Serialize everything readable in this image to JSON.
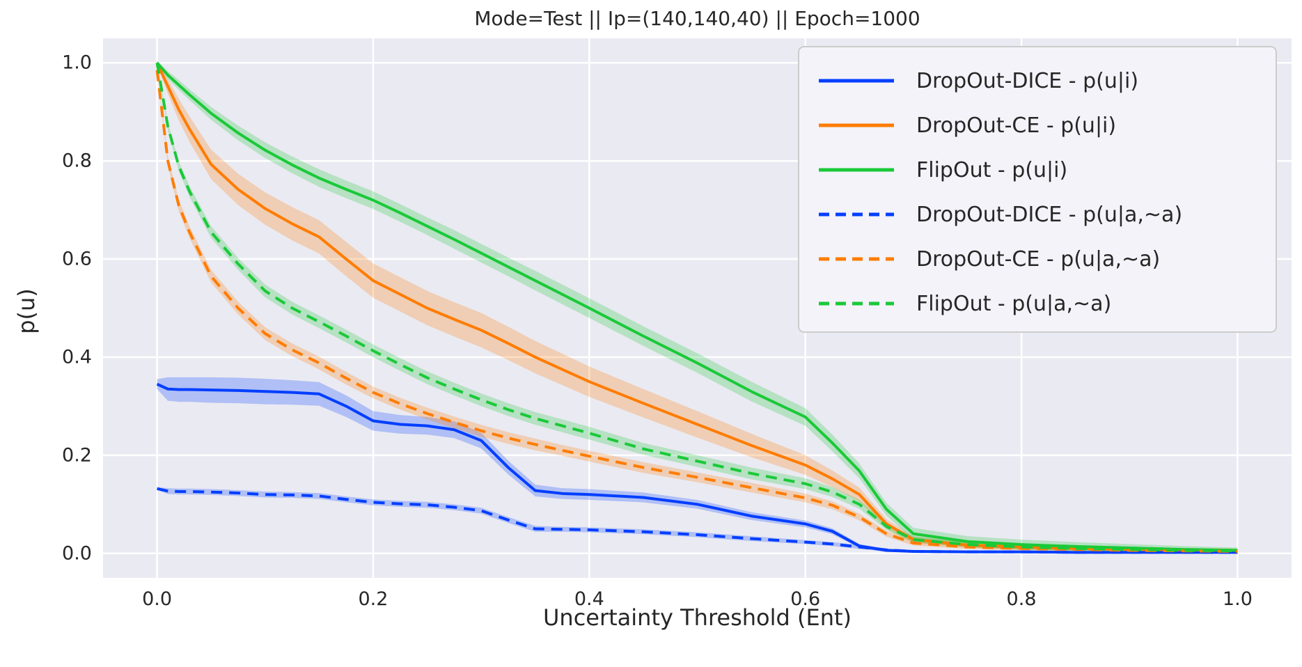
{
  "title": "Mode=Test || Ip=(140,140,40) || Epoch=1000",
  "colors": {
    "figure_background": "#ffffff",
    "axes_background": "#eaeaf2",
    "grid": "#ffffff",
    "text": "#262626",
    "legend_background": "#f3f3f9",
    "legend_border": "#cccccc",
    "blue": "#023EFF",
    "orange": "#FF7C00",
    "green": "#1AC938"
  },
  "chart_data": {
    "type": "line",
    "title": "Mode=Test || Ip=(140,140,40) || Epoch=1000",
    "xlabel": "Uncertainty Threshold (Ent)",
    "ylabel": "p(u)",
    "xlim": [
      -0.05,
      1.05
    ],
    "ylim": [
      -0.05,
      1.05
    ],
    "x_ticks": [
      "0.0",
      "0.2",
      "0.4",
      "0.6",
      "0.8",
      "1.0"
    ],
    "y_ticks": [
      "0.0",
      "0.2",
      "0.4",
      "0.6",
      "0.8",
      "1.0"
    ],
    "tick_values": [
      0.0,
      0.2,
      0.4,
      0.6,
      0.8,
      1.0
    ],
    "grid": true,
    "legend_position": "upper right",
    "x": [
      0,
      0.01,
      0.02,
      0.03,
      0.05,
      0.075,
      0.1,
      0.125,
      0.15,
      0.175,
      0.2,
      0.225,
      0.25,
      0.275,
      0.3,
      0.325,
      0.35,
      0.375,
      0.4,
      0.45,
      0.5,
      0.55,
      0.6,
      0.625,
      0.65,
      0.675,
      0.7,
      0.75,
      0.8,
      0.85,
      0.9,
      0.95,
      1.0
    ],
    "series": [
      {
        "label": "DropOut-DICE - p(u|i)",
        "color": "#023EFF",
        "dash": false,
        "values": [
          0.345,
          0.335,
          0.334,
          0.334,
          0.333,
          0.332,
          0.33,
          0.328,
          0.325,
          0.3,
          0.27,
          0.263,
          0.26,
          0.252,
          0.23,
          0.175,
          0.128,
          0.122,
          0.12,
          0.114,
          0.1,
          0.076,
          0.06,
          0.045,
          0.015,
          0.006,
          0.004,
          0.003,
          0.003,
          0.002,
          0.002,
          0.002,
          0.002
        ],
        "band": [
          0.01,
          0.024,
          0.025,
          0.025,
          0.026,
          0.026,
          0.026,
          0.025,
          0.024,
          0.022,
          0.02,
          0.019,
          0.018,
          0.017,
          0.016,
          0.014,
          0.012,
          0.011,
          0.011,
          0.01,
          0.009,
          0.008,
          0.007,
          0.006,
          0.004,
          0.003,
          0.002,
          0.002,
          0.002,
          0.002,
          0.002,
          0.002,
          0.002
        ]
      },
      {
        "label": "DropOut-CE - p(u|i)",
        "color": "#FF7C00",
        "dash": false,
        "values": [
          1.0,
          0.952,
          0.905,
          0.865,
          0.793,
          0.742,
          0.703,
          0.672,
          0.645,
          0.6,
          0.556,
          0.528,
          0.5,
          0.477,
          0.455,
          0.428,
          0.4,
          0.375,
          0.35,
          0.306,
          0.263,
          0.22,
          0.18,
          0.152,
          0.12,
          0.06,
          0.028,
          0.017,
          0.013,
          0.01,
          0.008,
          0.007,
          0.006
        ],
        "band": [
          0.005,
          0.015,
          0.022,
          0.026,
          0.03,
          0.032,
          0.033,
          0.034,
          0.034,
          0.035,
          0.035,
          0.035,
          0.035,
          0.035,
          0.035,
          0.034,
          0.033,
          0.032,
          0.031,
          0.029,
          0.027,
          0.024,
          0.02,
          0.017,
          0.014,
          0.01,
          0.007,
          0.005,
          0.005,
          0.004,
          0.004,
          0.004,
          0.004
        ]
      },
      {
        "label": "FlipOut - p(u|i)",
        "color": "#1AC938",
        "dash": false,
        "values": [
          1.0,
          0.975,
          0.955,
          0.935,
          0.897,
          0.857,
          0.822,
          0.792,
          0.765,
          0.742,
          0.72,
          0.694,
          0.667,
          0.64,
          0.612,
          0.584,
          0.556,
          0.528,
          0.5,
          0.443,
          0.388,
          0.33,
          0.278,
          0.225,
          0.168,
          0.09,
          0.04,
          0.024,
          0.018,
          0.014,
          0.011,
          0.008,
          0.006
        ],
        "band": [
          0.004,
          0.008,
          0.01,
          0.011,
          0.013,
          0.015,
          0.016,
          0.017,
          0.018,
          0.018,
          0.018,
          0.018,
          0.018,
          0.019,
          0.019,
          0.019,
          0.02,
          0.02,
          0.02,
          0.02,
          0.02,
          0.02,
          0.018,
          0.017,
          0.015,
          0.013,
          0.012,
          0.011,
          0.01,
          0.009,
          0.008,
          0.007,
          0.006
        ]
      },
      {
        "label": "DropOut-DICE - p(u|a,~a)",
        "color": "#023EFF",
        "dash": true,
        "values": [
          0.132,
          0.127,
          0.126,
          0.126,
          0.125,
          0.123,
          0.12,
          0.119,
          0.117,
          0.11,
          0.104,
          0.101,
          0.099,
          0.094,
          0.087,
          0.068,
          0.05,
          0.049,
          0.048,
          0.044,
          0.038,
          0.03,
          0.023,
          0.019,
          0.013,
          0.007,
          0.004,
          0.003,
          0.003,
          0.002,
          0.002,
          0.002,
          0.002
        ],
        "band": [
          0.003,
          0.006,
          0.006,
          0.006,
          0.006,
          0.006,
          0.006,
          0.006,
          0.006,
          0.006,
          0.006,
          0.006,
          0.006,
          0.006,
          0.006,
          0.006,
          0.006,
          0.005,
          0.005,
          0.005,
          0.005,
          0.005,
          0.004,
          0.004,
          0.004,
          0.003,
          0.003,
          0.002,
          0.002,
          0.002,
          0.002,
          0.002,
          0.002
        ]
      },
      {
        "label": "DropOut-CE - p(u|a,~a)",
        "color": "#FF7C00",
        "dash": true,
        "values": [
          0.985,
          0.8,
          0.71,
          0.655,
          0.565,
          0.5,
          0.448,
          0.415,
          0.388,
          0.357,
          0.328,
          0.305,
          0.285,
          0.267,
          0.25,
          0.235,
          0.222,
          0.21,
          0.198,
          0.175,
          0.155,
          0.134,
          0.113,
          0.098,
          0.074,
          0.04,
          0.021,
          0.013,
          0.01,
          0.008,
          0.006,
          0.005,
          0.004
        ],
        "band": [
          0.004,
          0.01,
          0.012,
          0.012,
          0.013,
          0.013,
          0.013,
          0.013,
          0.013,
          0.013,
          0.012,
          0.012,
          0.012,
          0.012,
          0.012,
          0.012,
          0.012,
          0.011,
          0.011,
          0.011,
          0.01,
          0.01,
          0.009,
          0.008,
          0.007,
          0.006,
          0.005,
          0.004,
          0.004,
          0.003,
          0.003,
          0.003,
          0.003
        ]
      },
      {
        "label": "FlipOut - p(u|a,~a)",
        "color": "#1AC938",
        "dash": true,
        "values": [
          1.0,
          0.87,
          0.79,
          0.738,
          0.655,
          0.59,
          0.535,
          0.5,
          0.472,
          0.443,
          0.413,
          0.385,
          0.358,
          0.335,
          0.313,
          0.293,
          0.275,
          0.26,
          0.245,
          0.213,
          0.188,
          0.163,
          0.142,
          0.125,
          0.1,
          0.055,
          0.028,
          0.018,
          0.013,
          0.01,
          0.008,
          0.006,
          0.005
        ],
        "band": [
          0.003,
          0.008,
          0.01,
          0.011,
          0.012,
          0.012,
          0.013,
          0.013,
          0.013,
          0.013,
          0.013,
          0.013,
          0.013,
          0.013,
          0.013,
          0.013,
          0.013,
          0.013,
          0.013,
          0.012,
          0.012,
          0.012,
          0.011,
          0.01,
          0.009,
          0.007,
          0.006,
          0.005,
          0.005,
          0.004,
          0.004,
          0.004,
          0.003
        ]
      }
    ]
  }
}
